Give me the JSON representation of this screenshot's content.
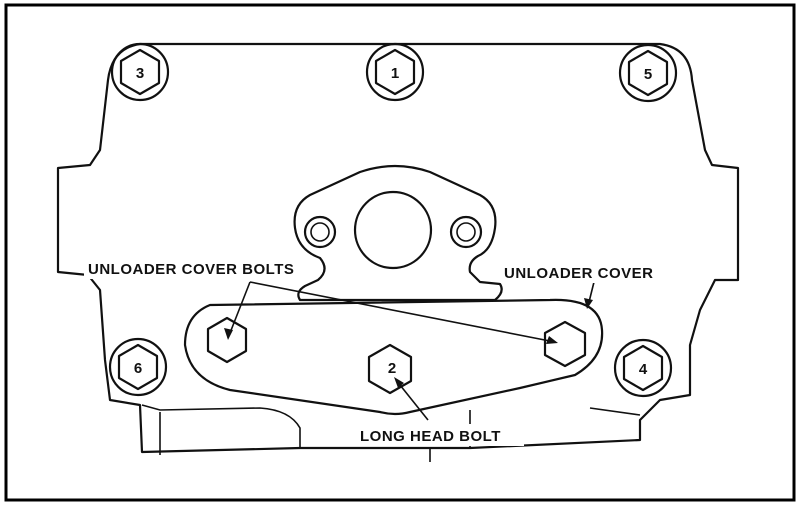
{
  "bolts": [
    {
      "id": "bolt-3",
      "label": "3"
    },
    {
      "id": "bolt-1",
      "label": "1"
    },
    {
      "id": "bolt-5",
      "label": "5"
    },
    {
      "id": "bolt-6",
      "label": "6"
    },
    {
      "id": "bolt-2",
      "label": "2"
    },
    {
      "id": "bolt-4",
      "label": "4"
    }
  ],
  "callouts": {
    "unloader_cover_bolts": "UNLOADER COVER BOLTS",
    "unloader_cover": "UNLOADER COVER",
    "long_head_bolt": "LONG HEAD BOLT"
  }
}
